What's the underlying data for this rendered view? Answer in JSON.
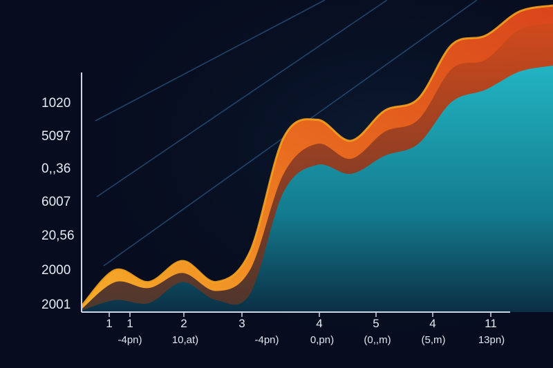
{
  "chart_data": {
    "type": "area",
    "y_tick_labels": [
      "1020",
      "5097",
      "0,,36",
      "6007",
      "20,56",
      "2000",
      "2001"
    ],
    "x_tick_labels": [
      "1",
      "1",
      "2",
      "3",
      "4",
      "5",
      "4",
      "11"
    ],
    "x_sublabels": [
      "-4pn)",
      "10,at)",
      "-4pn)",
      "0,pn)",
      "(0,,m)",
      "(5,m)",
      "13pn)"
    ],
    "x": [
      0,
      1,
      2,
      3,
      4,
      5,
      6,
      7,
      8,
      9,
      10,
      11,
      12,
      13,
      14
    ],
    "series": [
      {
        "values": [
          2,
          14,
          10,
          17,
          10,
          20,
          58,
          64,
          57,
          67,
          71,
          89,
          92,
          100,
          102
        ]
      },
      {
        "values": [
          1,
          10,
          8,
          13,
          7,
          14,
          46,
          56,
          51,
          60,
          64,
          81,
          84,
          94,
          96
        ]
      },
      {
        "values": [
          0.5,
          4,
          3,
          10,
          4,
          6,
          40,
          49,
          46,
          52,
          56,
          70,
          74,
          80,
          82
        ]
      }
    ],
    "grid": false,
    "colors": {
      "background": "#070d1f",
      "series_outer": "#f6a21e",
      "series_mid": "#e0531f",
      "series_inner": "#1fa9b8",
      "axis": "#cfd8e6",
      "streak": "#2a5c8c"
    }
  }
}
